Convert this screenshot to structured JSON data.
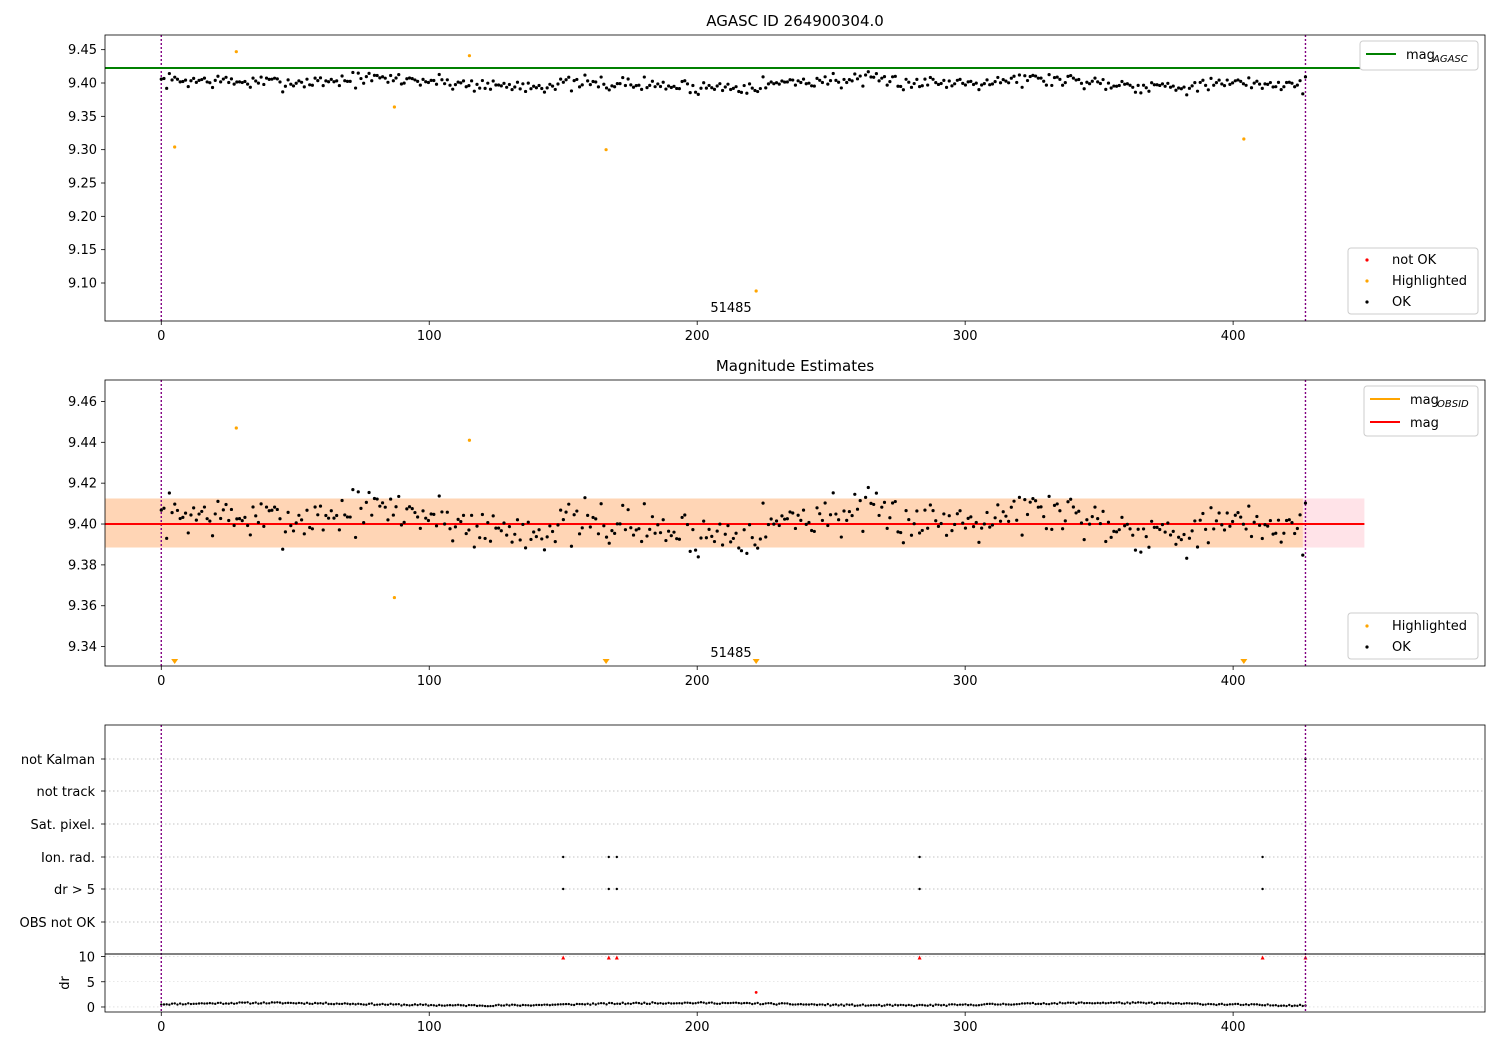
{
  "chart_data": [
    {
      "type": "scatter",
      "title": "AGASC ID 264900304.0",
      "xlim": [
        -21,
        494
      ],
      "ylim": [
        9.043,
        9.472
      ],
      "xticks": [
        0,
        100,
        200,
        300,
        400
      ],
      "xtick_labels": [
        "0",
        "100",
        "200",
        "300",
        "400"
      ],
      "yticks": [
        9.1,
        9.15,
        9.2,
        9.25,
        9.3,
        9.35,
        9.4,
        9.45
      ],
      "ytick_labels": [
        "9.10",
        "9.15",
        "9.20",
        "9.25",
        "9.30",
        "9.35",
        "9.40",
        "9.45"
      ],
      "vlines": [
        0,
        427
      ],
      "hline": {
        "name": "mag_AGASC",
        "y": 9.4225,
        "x_range": [
          -21,
          449
        ],
        "color": "#008000"
      },
      "annotation": {
        "text": "51485",
        "x": 214,
        "y": 9.063
      },
      "series": [
        {
          "name": "not OK",
          "color": "#ff0000",
          "points": []
        },
        {
          "name": "Highlighted",
          "color": "#ffa500",
          "points": [
            [
              5,
              9.304
            ],
            [
              28,
              9.447
            ],
            [
              87,
              9.364
            ],
            [
              115,
              9.441
            ],
            [
              166,
              9.3
            ],
            [
              222,
              9.088
            ],
            [
              404,
              9.316
            ]
          ]
        },
        {
          "name": "OK",
          "color": "#000000",
          "generate": "lightcurve",
          "n": 425,
          "x_range": [
            0,
            427
          ],
          "center": 9.4,
          "spread": 0.011,
          "seed": 7
        }
      ],
      "legend_top": {
        "labels": [
          "mag",
          "AGASC"
        ],
        "location": "upper right"
      },
      "legend_bottom": {
        "labels": [
          "not OK",
          "Highlighted",
          "OK"
        ],
        "location": "lower right"
      }
    },
    {
      "type": "scatter",
      "title": "Magnitude Estimates",
      "xlim": [
        -21,
        494
      ],
      "ylim": [
        9.3305,
        9.4705
      ],
      "xticks": [
        0,
        100,
        200,
        300,
        400
      ],
      "xtick_labels": [
        "0",
        "100",
        "200",
        "300",
        "400"
      ],
      "yticks": [
        9.34,
        9.36,
        9.38,
        9.4,
        9.42,
        9.44,
        9.46
      ],
      "ytick_labels": [
        "9.34",
        "9.36",
        "9.38",
        "9.40",
        "9.42",
        "9.44",
        "9.46"
      ],
      "vlines": [
        0,
        427
      ],
      "mag": {
        "name": "mag",
        "y": 9.4,
        "x_range": [
          -21,
          449
        ],
        "color": "#ff0000"
      },
      "band_outer": {
        "y": [
          9.3885,
          9.4125
        ],
        "color": "#ffc0cb"
      },
      "band_inner": {
        "y": [
          9.3885,
          9.4125
        ],
        "x_range": [
          -21,
          426
        ],
        "color": "#ffa500"
      },
      "annotation": {
        "text": "51485",
        "x": 214,
        "y": 9.3345
      },
      "offscale_markers": [
        5,
        166,
        222,
        404
      ],
      "series": [
        {
          "name": "Highlighted",
          "color": "#ffa500",
          "points": [
            [
              28,
              9.447
            ],
            [
              87,
              9.364
            ],
            [
              115,
              9.441
            ]
          ]
        },
        {
          "name": "OK",
          "color": "#000000",
          "generate": "lightcurve",
          "n": 425,
          "x_range": [
            0,
            427
          ],
          "center": 9.401,
          "spread": 0.011,
          "seed": 7
        }
      ],
      "legend_top": {
        "labels": [
          "mag",
          "OBSID",
          "mag"
        ],
        "location": "upper right"
      },
      "legend_bottom": {
        "labels": [
          "Highlighted",
          "OK"
        ],
        "location": "lower right"
      }
    },
    {
      "type": "scatter",
      "xlim": [
        -21,
        494
      ],
      "categories": [
        "OBS not OK",
        "dr > 5",
        "Ion. rad.",
        "Sat. pixel.",
        "not track",
        "not Kalman"
      ],
      "flag_points": [
        {
          "category": "dr > 5",
          "x": [
            150,
            167,
            170,
            283,
            411
          ]
        },
        {
          "category": "Ion. rad.",
          "x": [
            150,
            167,
            170,
            283,
            411
          ]
        },
        {
          "category": "not Kalman",
          "x": [
            427
          ]
        }
      ],
      "vlines": [
        0,
        427
      ],
      "dr": {
        "ylabel": "dr",
        "yticks": [
          0,
          5,
          10
        ],
        "ytick_labels": [
          "0",
          "5",
          "10"
        ],
        "ylim": [
          -0.4,
          10.5
        ],
        "outliers": [
          [
            150,
            9.8
          ],
          [
            167,
            9.8
          ],
          [
            170,
            9.8
          ],
          [
            283,
            9.8
          ],
          [
            411,
            9.8
          ],
          [
            427,
            9.8
          ],
          [
            222,
            2.9
          ]
        ],
        "outlier_color": "#ff0000",
        "baseline": {
          "generate": "dr",
          "n": 425,
          "x_range": [
            0,
            427
          ],
          "center": 0.55,
          "spread": 0.3
        }
      },
      "xticks": [
        0,
        100,
        200,
        300,
        400
      ],
      "xtick_labels": [
        "0",
        "100",
        "200",
        "300",
        "400"
      ]
    }
  ]
}
